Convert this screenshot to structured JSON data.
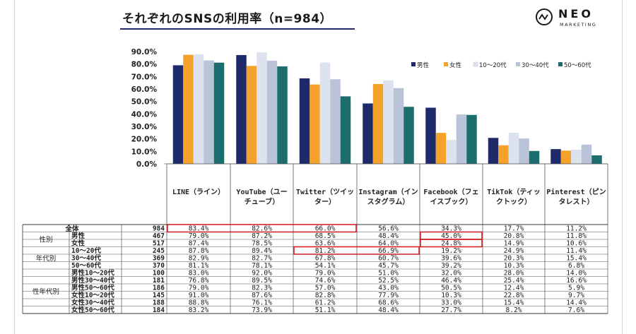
{
  "title": "それぞれのSNSの利用率（n=984）",
  "logo": {
    "name": "NEO",
    "sub": "MARKETING"
  },
  "chart_data": {
    "type": "bar",
    "title": "それぞれのSNSの利用率（n=984）",
    "categories": [
      "LINE（ライン）",
      "YouTube（ユーチューブ）",
      "Twitter（ツイッター）",
      "Instagram（インスタグラム）",
      "Facebook（フェイスブック）",
      "TikTok（ティックトック）",
      "Pinterest（ピンタレスト）"
    ],
    "category_lines": [
      [
        "LINE（ライン）"
      ],
      [
        "YouTube（ユー",
        "チューブ）"
      ],
      [
        "Twitter（ツイッ",
        "ター）"
      ],
      [
        "Instagram（イン",
        "スタグラム）"
      ],
      [
        "Facebook（フェ",
        "イスブック）"
      ],
      [
        "TikTok（ティッ",
        "クトック）"
      ],
      [
        "Pinterest（ピン",
        "タレスト）"
      ]
    ],
    "yticks": [
      "90.0%",
      "80.0%",
      "70.0%",
      "60.0%",
      "50.0%",
      "40.0%",
      "30.0%",
      "20.0%",
      "10.0%",
      "0.0%"
    ],
    "ylim": [
      0,
      90
    ],
    "legend_position": "top-right",
    "series": [
      {
        "name": "男性",
        "color": "#1f2a6b",
        "values": [
          79.0,
          87.2,
          68.5,
          48.4,
          45.0,
          20.8,
          11.8
        ]
      },
      {
        "name": "女性",
        "color": "#f4a22b",
        "values": [
          87.4,
          78.5,
          63.6,
          64.0,
          24.8,
          14.9,
          10.6
        ]
      },
      {
        "name": "10～20代",
        "color": "#dde3ee",
        "values": [
          87.8,
          89.4,
          81.2,
          66.9,
          19.2,
          24.9,
          11.4
        ]
      },
      {
        "name": "30～40代",
        "color": "#b9c4d8",
        "values": [
          82.9,
          82.7,
          67.8,
          60.7,
          39.6,
          20.3,
          15.4
        ]
      },
      {
        "name": "50～60代",
        "color": "#1c6e6e",
        "values": [
          81.1,
          78.1,
          54.1,
          45.7,
          39.2,
          10.3,
          6.8
        ]
      }
    ],
    "table": {
      "rows": [
        {
          "group": "全体",
          "label": "",
          "n": "984",
          "values": [
            "83.4%",
            "82.6%",
            "66.0%",
            "56.6%",
            "34.3%",
            "17.7%",
            "11.2%"
          ]
        },
        {
          "group": "性別",
          "label": "男性",
          "n": "467",
          "values": [
            "79.0%",
            "87.2%",
            "68.5%",
            "48.4%",
            "45.0%",
            "20.8%",
            "11.8%"
          ]
        },
        {
          "group": "性別",
          "label": "女性",
          "n": "517",
          "values": [
            "87.4%",
            "78.5%",
            "63.6%",
            "64.0%",
            "24.8%",
            "14.9%",
            "10.6%"
          ]
        },
        {
          "group": "年代別",
          "label": "10～20代",
          "n": "245",
          "values": [
            "87.8%",
            "89.4%",
            "81.2%",
            "66.9%",
            "19.2%",
            "24.9%",
            "11.4%"
          ]
        },
        {
          "group": "年代別",
          "label": "30～40代",
          "n": "369",
          "values": [
            "82.9%",
            "82.7%",
            "67.8%",
            "60.7%",
            "39.6%",
            "20.3%",
            "15.4%"
          ]
        },
        {
          "group": "年代別",
          "label": "50～60代",
          "n": "370",
          "values": [
            "81.1%",
            "78.1%",
            "54.1%",
            "45.7%",
            "39.2%",
            "10.3%",
            "6.8%"
          ]
        },
        {
          "group": "性年代別",
          "label": "男性10～20代",
          "n": "100",
          "values": [
            "83.0%",
            "92.0%",
            "79.0%",
            "51.0%",
            "32.0%",
            "28.0%",
            "14.0%"
          ]
        },
        {
          "group": "性年代別",
          "label": "男性30～40代",
          "n": "181",
          "values": [
            "76.8%",
            "89.5%",
            "74.6%",
            "52.5%",
            "46.4%",
            "25.4%",
            "16.6%"
          ]
        },
        {
          "group": "性年代別",
          "label": "男性50～60代",
          "n": "186",
          "values": [
            "79.0%",
            "82.3%",
            "57.0%",
            "43.0%",
            "50.5%",
            "12.4%",
            "5.9%"
          ]
        },
        {
          "group": "性年代別",
          "label": "女性10～20代",
          "n": "145",
          "values": [
            "91.0%",
            "87.6%",
            "82.8%",
            "77.9%",
            "10.3%",
            "22.8%",
            "9.7%"
          ]
        },
        {
          "group": "性年代別",
          "label": "女性30～40代",
          "n": "188",
          "values": [
            "88.8%",
            "76.1%",
            "61.2%",
            "68.6%",
            "33.0%",
            "15.4%",
            "14.4%"
          ]
        },
        {
          "group": "性年代別",
          "label": "女性50～60代",
          "n": "184",
          "values": [
            "83.2%",
            "73.9%",
            "51.1%",
            "48.4%",
            "27.7%",
            "8.2%",
            "7.6%"
          ]
        }
      ],
      "groups": [
        {
          "name": "全体",
          "start": 0,
          "count": 1
        },
        {
          "name": "性別",
          "start": 1,
          "count": 2
        },
        {
          "name": "年代別",
          "start": 3,
          "count": 3
        },
        {
          "name": "性年代別",
          "start": 6,
          "count": 6
        }
      ],
      "highlights": [
        {
          "row": 0,
          "col_start": 0,
          "col_end": 2
        },
        {
          "row": 1,
          "col_start": 4,
          "col_end": 4
        },
        {
          "row": 2,
          "col_start": 4,
          "col_end": 4
        },
        {
          "row": 3,
          "col_start": 2,
          "col_end": 3
        }
      ],
      "highlight_color": "#d0191c"
    }
  }
}
